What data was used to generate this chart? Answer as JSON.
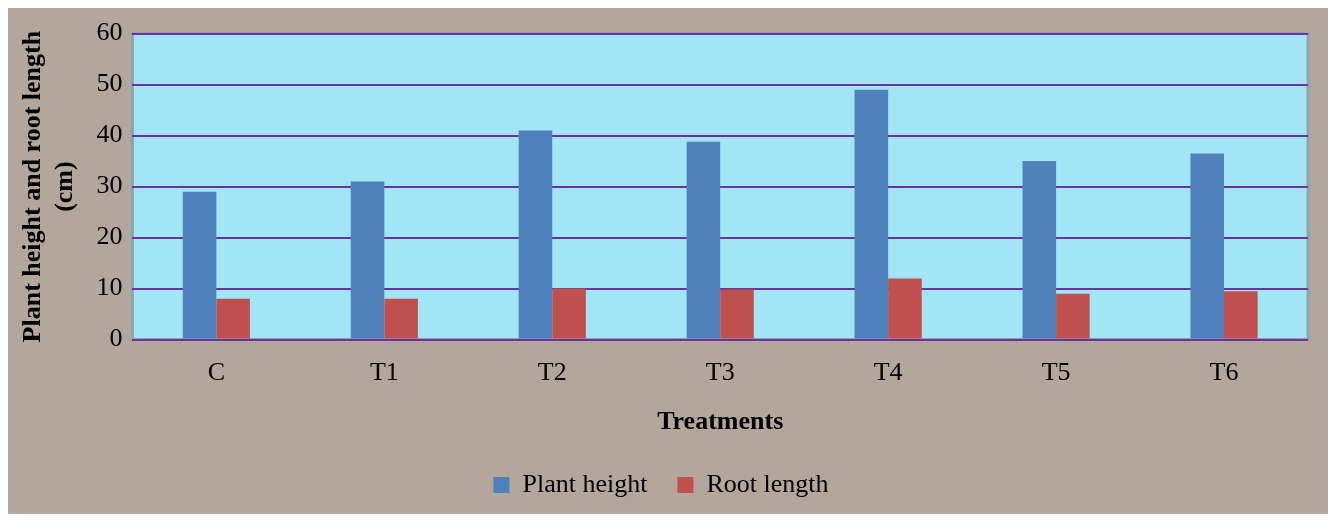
{
  "chart_data": {
    "type": "bar",
    "xlabel": "Treatments",
    "ylabel": "Plant height and root length (cm)",
    "categories": [
      "C",
      "T1",
      "T2",
      "T3",
      "T4",
      "T5",
      "T6"
    ],
    "series": [
      {
        "name": "Plant height",
        "color": "#4f81bd",
        "values": [
          29,
          31,
          41,
          38.8,
          49,
          35,
          36.5
        ]
      },
      {
        "name": "Root length",
        "color": "#c0504d",
        "values": [
          8,
          8,
          10,
          9.8,
          12,
          9,
          9.5
        ]
      }
    ],
    "ylim": [
      0,
      60
    ],
    "yticks": [
      0,
      10,
      20,
      30,
      40,
      50,
      60
    ],
    "grid": "y",
    "legend": "bottom"
  }
}
